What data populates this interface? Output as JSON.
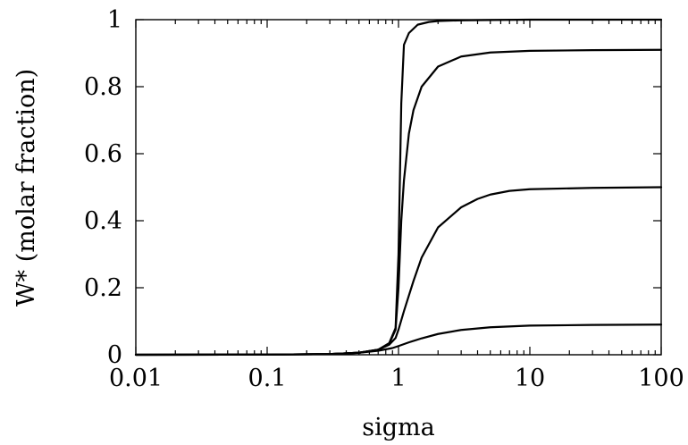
{
  "chart_data": {
    "type": "line",
    "xlabel": "sigma",
    "ylabel": "W* (molar fraction)",
    "x_scale": "log",
    "xlim": [
      0.01,
      100
    ],
    "ylim": [
      0,
      1
    ],
    "x_ticks": [
      {
        "value": 0.01,
        "label": "0.01"
      },
      {
        "value": 0.1,
        "label": "0.1"
      },
      {
        "value": 1,
        "label": "1"
      },
      {
        "value": 10,
        "label": "10"
      },
      {
        "value": 100,
        "label": "100"
      }
    ],
    "y_ticks": [
      {
        "value": 0,
        "label": "0"
      },
      {
        "value": 0.2,
        "label": "0.2"
      },
      {
        "value": 0.4,
        "label": "0.4"
      },
      {
        "value": 0.6,
        "label": "0.6"
      },
      {
        "value": 0.8,
        "label": "0.8"
      },
      {
        "value": 1,
        "label": "1"
      }
    ],
    "grid": false,
    "legend": "none",
    "series": [
      {
        "x": [
          0.01,
          0.1,
          0.3,
          0.5,
          0.7,
          0.85,
          0.95,
          1.0,
          1.05,
          1.1,
          1.2,
          1.4,
          1.7,
          2,
          3,
          5,
          10,
          30,
          100
        ],
        "y": [
          0,
          0.0005,
          0.002,
          0.006,
          0.015,
          0.035,
          0.08,
          0.3,
          0.75,
          0.925,
          0.96,
          0.985,
          0.993,
          0.996,
          0.998,
          0.999,
          1.0,
          1.0,
          1.0
        ]
      },
      {
        "x": [
          0.01,
          0.1,
          0.3,
          0.5,
          0.7,
          0.85,
          0.95,
          1.0,
          1.05,
          1.1,
          1.2,
          1.3,
          1.5,
          2,
          3,
          5,
          10,
          30,
          100
        ],
        "y": [
          0,
          0.0005,
          0.002,
          0.006,
          0.015,
          0.033,
          0.075,
          0.2,
          0.4,
          0.52,
          0.66,
          0.73,
          0.8,
          0.86,
          0.89,
          0.902,
          0.907,
          0.909,
          0.91
        ]
      },
      {
        "x": [
          0.01,
          0.1,
          0.3,
          0.5,
          0.7,
          0.85,
          0.95,
          1.0,
          1.1,
          1.3,
          1.5,
          2,
          3,
          4,
          5,
          7,
          10,
          30,
          100
        ],
        "y": [
          0,
          0.0005,
          0.002,
          0.006,
          0.015,
          0.03,
          0.05,
          0.075,
          0.13,
          0.22,
          0.29,
          0.38,
          0.44,
          0.465,
          0.478,
          0.489,
          0.494,
          0.498,
          0.5
        ]
      },
      {
        "x": [
          0.01,
          0.1,
          0.3,
          0.5,
          0.7,
          0.9,
          1.0,
          1.2,
          1.5,
          2,
          3,
          5,
          10,
          30,
          100
        ],
        "y": [
          0,
          0.0005,
          0.002,
          0.006,
          0.012,
          0.02,
          0.026,
          0.037,
          0.049,
          0.062,
          0.074,
          0.082,
          0.087,
          0.089,
          0.09
        ]
      }
    ]
  }
}
